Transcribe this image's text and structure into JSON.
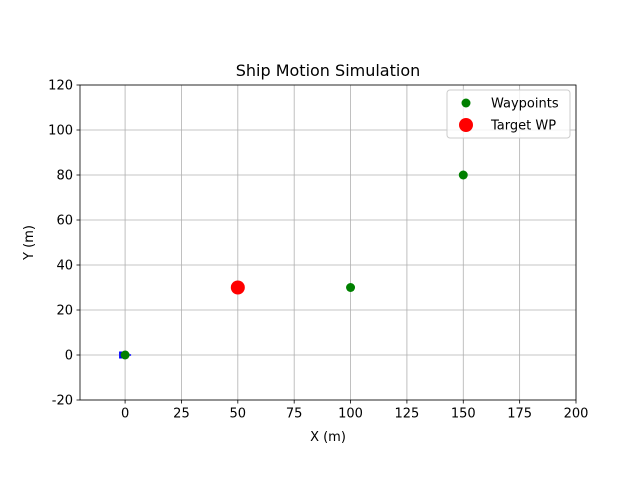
{
  "chart_data": {
    "type": "scatter",
    "title": "Ship Motion Simulation",
    "xlabel": "X (m)",
    "ylabel": "Y (m)",
    "xlim": [
      -20,
      200
    ],
    "ylim": [
      -20,
      120
    ],
    "xticks": [
      0,
      25,
      50,
      75,
      100,
      125,
      150,
      175,
      200
    ],
    "yticks": [
      -20,
      0,
      20,
      40,
      60,
      80,
      100,
      120
    ],
    "grid": true,
    "legend_position": "top-right",
    "series": [
      {
        "name": "Waypoints",
        "color": "#008000",
        "marker": "circle",
        "marker_scale": "small",
        "x": [
          0,
          100,
          150
        ],
        "y": [
          0,
          30,
          80
        ]
      },
      {
        "name": "Target WP",
        "color": "#ff0000",
        "marker": "circle",
        "marker_scale": "large",
        "x": [
          50
        ],
        "y": [
          30
        ]
      }
    ],
    "ship": {
      "color": "#0000ff",
      "x": 0,
      "y": 0
    }
  }
}
